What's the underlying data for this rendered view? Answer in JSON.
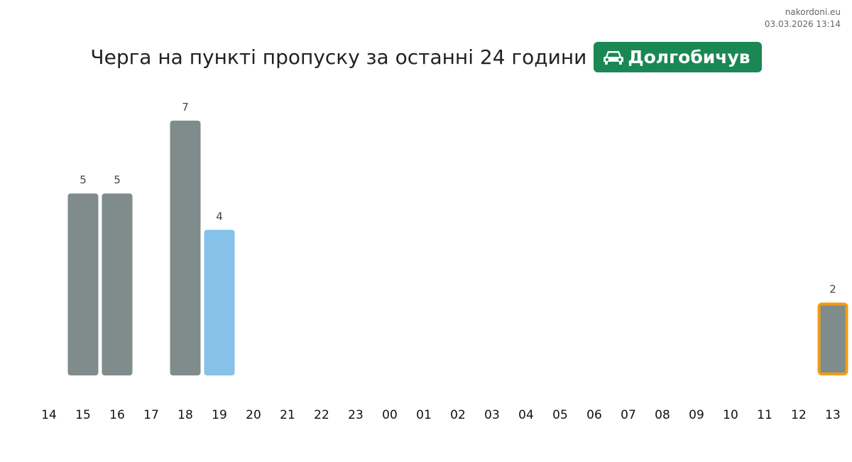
{
  "site": {
    "name": "nakordoni.eu",
    "timestamp": "03.03.2026 13:14"
  },
  "header": {
    "title": "Черга на пункті пропуску за останні 24 години",
    "checkpoint": "Долгобичув",
    "checkpoint_icon": "car-icon"
  },
  "colors": {
    "bar": "#7f8c8b",
    "current_bar": "#85c1e9",
    "highlight_border": "#f39c12",
    "badge": "#1a8754"
  },
  "chart_data": {
    "type": "bar",
    "title": "",
    "categories": [
      "14",
      "15",
      "16",
      "17",
      "18",
      "19",
      "20",
      "21",
      "22",
      "23",
      "00",
      "01",
      "02",
      "03",
      "04",
      "05",
      "06",
      "07",
      "08",
      "09",
      "10",
      "11",
      "12",
      "13"
    ],
    "values": [
      null,
      5,
      5,
      null,
      7,
      4,
      null,
      null,
      null,
      null,
      null,
      null,
      null,
      null,
      null,
      null,
      null,
      null,
      null,
      null,
      null,
      null,
      null,
      2
    ],
    "highlight_blue_category": "19",
    "highlight_outlined_category": "13",
    "ylim": [
      0,
      7
    ],
    "grid": false,
    "xlabel": "",
    "ylabel": ""
  }
}
